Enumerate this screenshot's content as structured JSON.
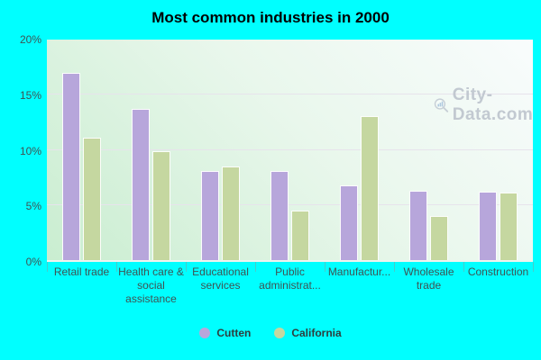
{
  "title": "Most common industries in 2000",
  "watermark": {
    "text": "City-Data.com"
  },
  "colors": {
    "background": "#00ffff",
    "cutten_bar": "#b7a6db",
    "california_bar": "#c5d7a0",
    "gridline": "#e7e3ec",
    "axis_text": "#3f5353",
    "watermark_text": "#bdc4cd"
  },
  "chart_data": {
    "type": "bar",
    "title": "Most common industries in 2000",
    "categories": [
      "Retail trade",
      "Health care & social assistance",
      "Educational services",
      "Public administrat...",
      "Manufactur...",
      "Wholesale trade",
      "Construction"
    ],
    "series": [
      {
        "name": "Cutten",
        "color": "#b7a6db",
        "values": [
          17.0,
          13.7,
          8.1,
          8.1,
          6.8,
          6.3,
          6.2
        ]
      },
      {
        "name": "California",
        "color": "#c5d7a0",
        "values": [
          11.1,
          9.9,
          8.5,
          4.5,
          13.1,
          4.0,
          6.1
        ]
      }
    ],
    "xlabel": "",
    "ylabel": "",
    "ylim": [
      0,
      20
    ],
    "yticks": [
      {
        "label": "0%",
        "value": 0
      },
      {
        "label": "5%",
        "value": 5
      },
      {
        "label": "10%",
        "value": 10
      },
      {
        "label": "15%",
        "value": 15
      },
      {
        "label": "20%",
        "value": 20
      }
    ],
    "grid": true,
    "legend_position": "bottom"
  }
}
